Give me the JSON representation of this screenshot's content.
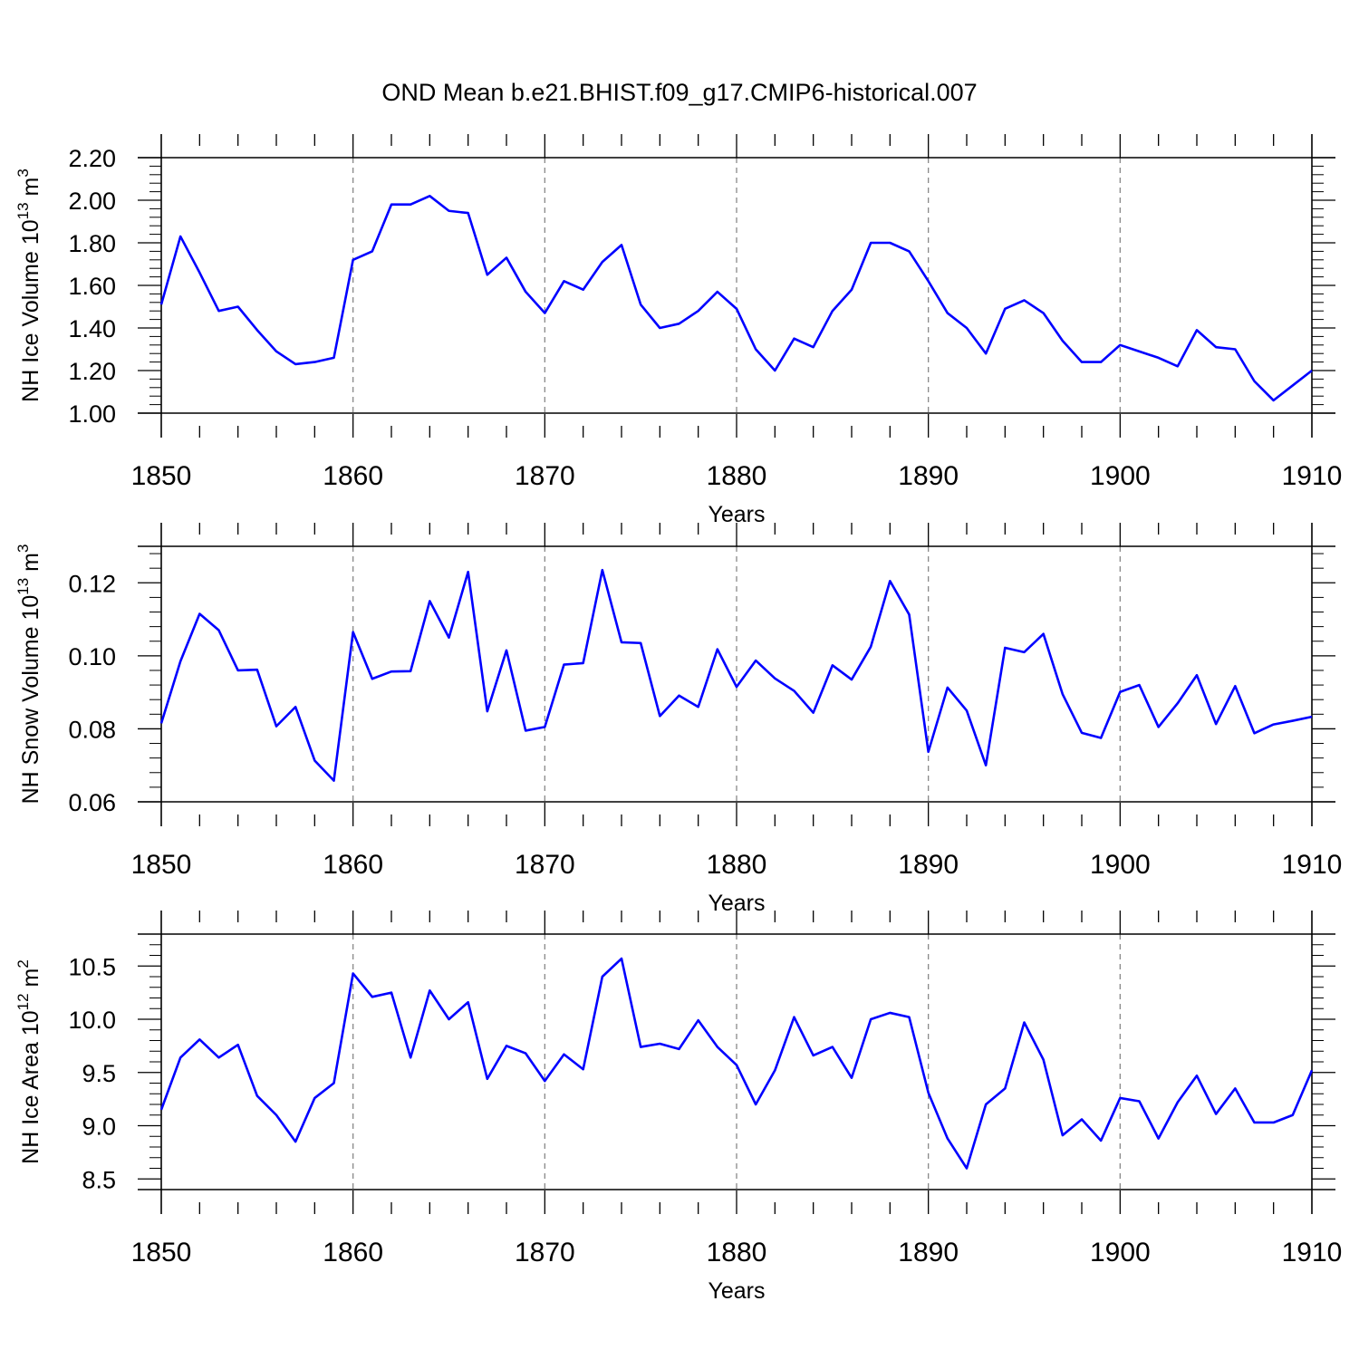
{
  "title": "OND Mean b.e21.BHIST.f09_g17.CMIP6-historical.007",
  "colors": {
    "line": "#0000ff",
    "axes": "#000000",
    "gridline": "#888888"
  },
  "chart_data": [
    {
      "type": "line",
      "ylabel": {
        "base": "NH Ice Volume 10",
        "exp": "13",
        "unit": " m",
        "unit_exp": "3"
      },
      "xlabel": "Years",
      "xlim": [
        1850,
        1910
      ],
      "ylim": [
        1.0,
        2.2
      ],
      "x_ticks": [
        "1850",
        "1860",
        "1870",
        "1880",
        "1890",
        "1900",
        "1910"
      ],
      "y_ticks": [
        "1.00",
        "1.20",
        "1.40",
        "1.60",
        "1.80",
        "2.00",
        "2.20"
      ],
      "grid": "dashed vertical at decades",
      "start_year": 1850,
      "values": [
        1.51,
        1.83,
        1.66,
        1.48,
        1.5,
        1.39,
        1.29,
        1.23,
        1.24,
        1.26,
        1.72,
        1.76,
        1.98,
        1.98,
        2.02,
        1.95,
        1.94,
        1.65,
        1.73,
        1.57,
        1.47,
        1.62,
        1.58,
        1.71,
        1.79,
        1.51,
        1.4,
        1.42,
        1.48,
        1.57,
        1.49,
        1.3,
        1.2,
        1.35,
        1.31,
        1.48,
        1.58,
        1.8,
        1.8,
        1.76,
        1.62,
        1.47,
        1.4,
        1.28,
        1.49,
        1.53,
        1.47,
        1.34,
        1.24,
        1.24,
        1.32,
        1.29,
        1.26,
        1.22,
        1.39,
        1.31,
        1.3,
        1.15,
        1.06,
        1.13,
        1.2
      ]
    },
    {
      "type": "line",
      "ylabel": {
        "base": "NH Snow Volume 10",
        "exp": "13",
        "unit": " m",
        "unit_exp": "3"
      },
      "xlabel": "Years",
      "xlim": [
        1850,
        1910
      ],
      "ylim": [
        0.06,
        0.13
      ],
      "x_ticks": [
        "1850",
        "1860",
        "1870",
        "1880",
        "1890",
        "1900",
        "1910"
      ],
      "y_ticks": [
        "0.06",
        "0.08",
        "0.10",
        "0.12"
      ],
      "grid": "dashed vertical at decades",
      "start_year": 1850,
      "values": [
        0.0815,
        0.0985,
        0.1115,
        0.107,
        0.096,
        0.0962,
        0.0807,
        0.086,
        0.0713,
        0.0658,
        0.1065,
        0.0937,
        0.0957,
        0.0958,
        0.115,
        0.105,
        0.123,
        0.0848,
        0.1015,
        0.0795,
        0.0805,
        0.0976,
        0.098,
        0.1235,
        0.1037,
        0.1035,
        0.0835,
        0.0891,
        0.086,
        0.1018,
        0.0915,
        0.0987,
        0.0938,
        0.0904,
        0.0844,
        0.0974,
        0.0935,
        0.1025,
        0.1205,
        0.1113,
        0.0737,
        0.0913,
        0.085,
        0.07,
        0.1022,
        0.101,
        0.106,
        0.0895,
        0.0789,
        0.0775,
        0.0901,
        0.092,
        0.0805,
        0.087,
        0.0947,
        0.0813,
        0.0917,
        0.0788,
        0.0812,
        0.0822,
        0.0833
      ]
    },
    {
      "type": "line",
      "ylabel": {
        "base": "NH Ice Area 10",
        "exp": "12",
        "unit": " m",
        "unit_exp": "2"
      },
      "xlabel": "Years",
      "xlim": [
        1850,
        1910
      ],
      "ylim": [
        8.4,
        10.8
      ],
      "x_ticks": [
        "1850",
        "1860",
        "1870",
        "1880",
        "1890",
        "1900",
        "1910"
      ],
      "y_ticks": [
        "8.5",
        "9.0",
        "9.5",
        "10.0",
        "10.5"
      ],
      "grid": "dashed vertical at decades",
      "start_year": 1850,
      "values": [
        9.15,
        9.64,
        9.81,
        9.64,
        9.76,
        9.28,
        9.1,
        8.85,
        9.26,
        9.4,
        10.43,
        10.21,
        10.25,
        9.64,
        10.27,
        10.0,
        10.16,
        9.44,
        9.75,
        9.68,
        9.42,
        9.67,
        9.53,
        10.4,
        10.57,
        9.74,
        9.77,
        9.72,
        9.99,
        9.74,
        9.57,
        9.2,
        9.52,
        10.02,
        9.66,
        9.74,
        9.45,
        10.0,
        10.06,
        10.02,
        9.31,
        8.88,
        8.6,
        9.2,
        9.35,
        9.97,
        9.62,
        8.91,
        9.06,
        8.86,
        9.26,
        9.23,
        8.88,
        9.22,
        9.47,
        9.11,
        9.35,
        9.03,
        9.03,
        9.1,
        9.52
      ]
    }
  ]
}
